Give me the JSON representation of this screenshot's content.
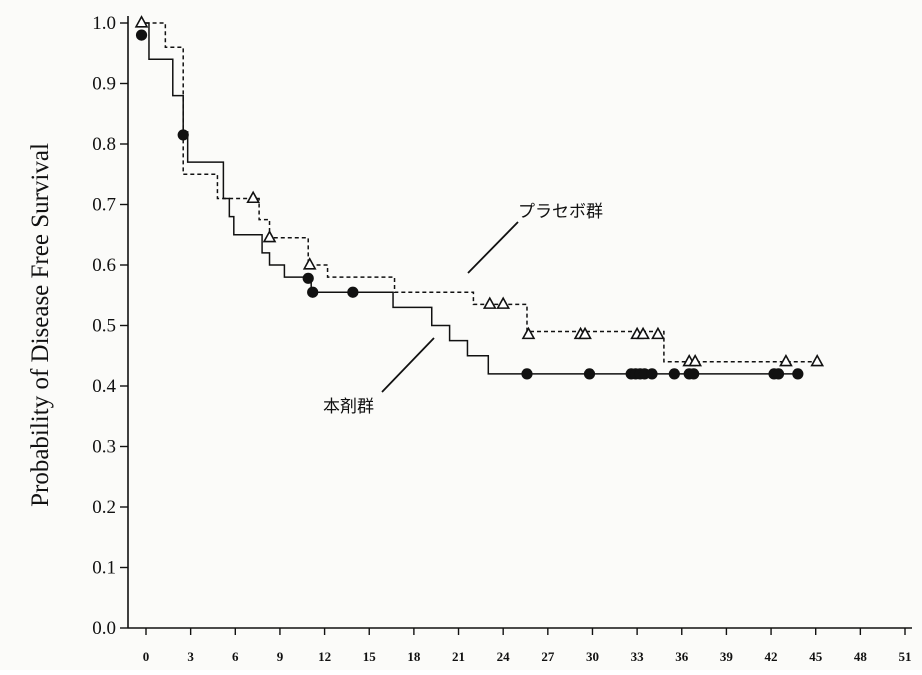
{
  "chart_data": {
    "type": "line",
    "title": "",
    "xlabel": "",
    "ylabel": "Probability of Disease Free Survival",
    "xlim": [
      -1,
      51
    ],
    "ylim": [
      0.0,
      1.0
    ],
    "x_ticks": [
      "0",
      "3",
      "6",
      "9",
      "12",
      "15",
      "18",
      "21",
      "24",
      "27",
      "30",
      "33",
      "36",
      "39",
      "42",
      "45",
      "48",
      "51"
    ],
    "y_ticks": [
      "0.0",
      "0.1",
      "0.2",
      "0.3",
      "0.4",
      "0.5",
      "0.6",
      "0.7",
      "0.8",
      "0.9",
      "1.0"
    ],
    "grid": false,
    "series": [
      {
        "name": "本剤群",
        "line_style": "solid",
        "marker": "filled-circle",
        "color": "#111111",
        "steps": [
          [
            -0.5,
            1.0
          ],
          [
            0.2,
            0.94
          ],
          [
            1.8,
            0.88
          ],
          [
            2.5,
            0.82
          ],
          [
            2.8,
            0.77
          ],
          [
            5.2,
            0.71
          ],
          [
            5.6,
            0.68
          ],
          [
            5.9,
            0.65
          ],
          [
            7.8,
            0.62
          ],
          [
            8.3,
            0.6
          ],
          [
            9.3,
            0.58
          ],
          [
            11.1,
            0.555
          ],
          [
            16.6,
            0.53
          ],
          [
            19.2,
            0.5
          ],
          [
            20.4,
            0.475
          ],
          [
            21.6,
            0.45
          ],
          [
            23.0,
            0.42
          ],
          [
            44.0,
            0.42
          ]
        ],
        "censored": [
          [
            -0.3,
            0.98
          ],
          [
            2.5,
            0.815
          ],
          [
            10.9,
            0.578
          ],
          [
            11.2,
            0.555
          ],
          [
            13.9,
            0.555
          ],
          [
            25.6,
            0.42
          ],
          [
            29.8,
            0.42
          ],
          [
            32.6,
            0.42
          ],
          [
            32.9,
            0.42
          ],
          [
            33.2,
            0.42
          ],
          [
            33.5,
            0.42
          ],
          [
            34.0,
            0.42
          ],
          [
            35.5,
            0.42
          ],
          [
            36.5,
            0.42
          ],
          [
            36.8,
            0.42
          ],
          [
            42.2,
            0.42
          ],
          [
            42.5,
            0.42
          ],
          [
            43.8,
            0.42
          ]
        ]
      },
      {
        "name": "プラセボ群",
        "line_style": "dashed",
        "marker": "open-triangle",
        "color": "#111111",
        "steps": [
          [
            -0.5,
            1.0
          ],
          [
            1.3,
            0.96
          ],
          [
            2.5,
            0.75
          ],
          [
            4.8,
            0.71
          ],
          [
            7.6,
            0.675
          ],
          [
            8.3,
            0.645
          ],
          [
            10.9,
            0.6
          ],
          [
            12.2,
            0.58
          ],
          [
            16.7,
            0.555
          ],
          [
            22.0,
            0.535
          ],
          [
            25.6,
            0.49
          ],
          [
            34.8,
            0.44
          ],
          [
            45.2,
            0.44
          ]
        ],
        "censored": [
          [
            -0.3,
            1.0
          ],
          [
            7.2,
            0.71
          ],
          [
            8.3,
            0.645
          ],
          [
            11.0,
            0.6
          ],
          [
            23.1,
            0.535
          ],
          [
            24.0,
            0.535
          ],
          [
            25.7,
            0.485
          ],
          [
            29.2,
            0.485
          ],
          [
            29.5,
            0.485
          ],
          [
            33.0,
            0.485
          ],
          [
            33.4,
            0.485
          ],
          [
            34.4,
            0.485
          ],
          [
            36.5,
            0.44
          ],
          [
            36.9,
            0.44
          ],
          [
            43.0,
            0.44
          ],
          [
            45.1,
            0.44
          ]
        ]
      }
    ],
    "annotations": [
      {
        "text": "プラセボ群",
        "target_series": "プラセボ群"
      },
      {
        "text": "本剤群",
        "target_series": "本剤群"
      }
    ]
  }
}
